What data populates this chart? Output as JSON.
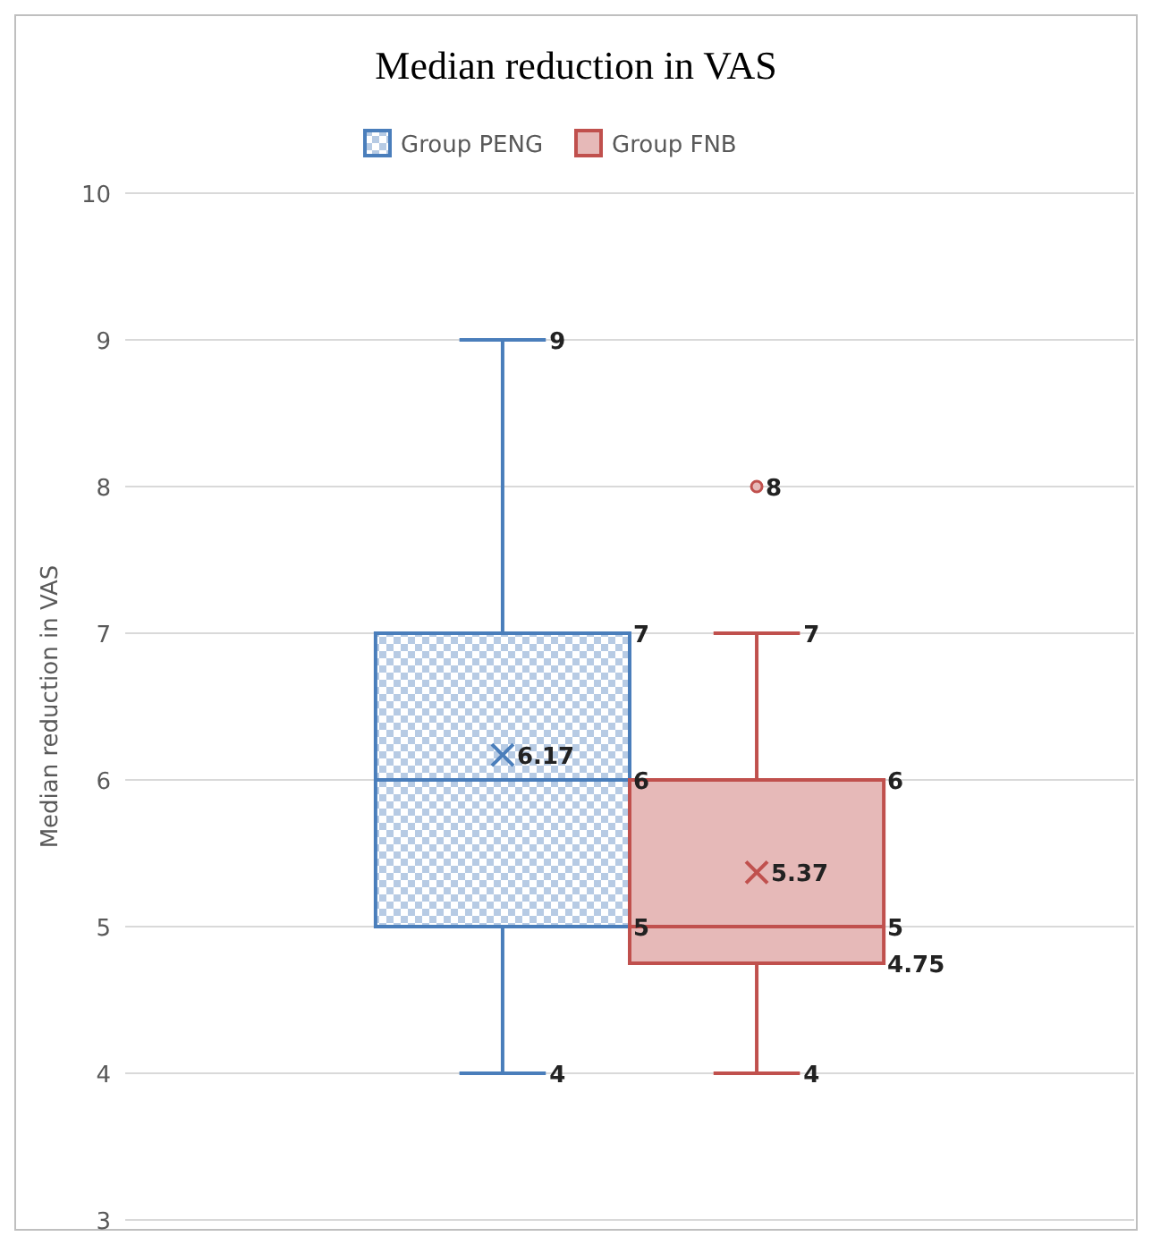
{
  "chart_data": {
    "type": "box",
    "title": "Median reduction in VAS",
    "ylabel": "Median reduction in VAS",
    "categories": [
      null
    ],
    "series": [
      {
        "name": "Group PENG",
        "color": "#4a7ebb",
        "boxes": [
          {
            "low": 4,
            "q1": 5,
            "median": 6,
            "q3": 7,
            "high": 9,
            "mean": 6.17
          }
        ]
      },
      {
        "name": "Group FNB",
        "color": "#c0504d",
        "boxes": [
          {
            "low": 4,
            "q1": 4.75,
            "median": 5,
            "q3": 6,
            "high": 7,
            "mean": 5.37,
            "outliers": [
              8
            ]
          }
        ]
      }
    ],
    "ylim": [
      3,
      10
    ],
    "yticks": [
      3,
      4,
      5,
      6,
      7,
      8,
      9,
      10
    ],
    "grid": "y",
    "legend": "top",
    "annotations": [
      "4",
      "5",
      "6",
      "7",
      "9",
      "6.17",
      "4",
      "4.75",
      "5",
      "6",
      "7",
      "5.37",
      "8"
    ]
  }
}
